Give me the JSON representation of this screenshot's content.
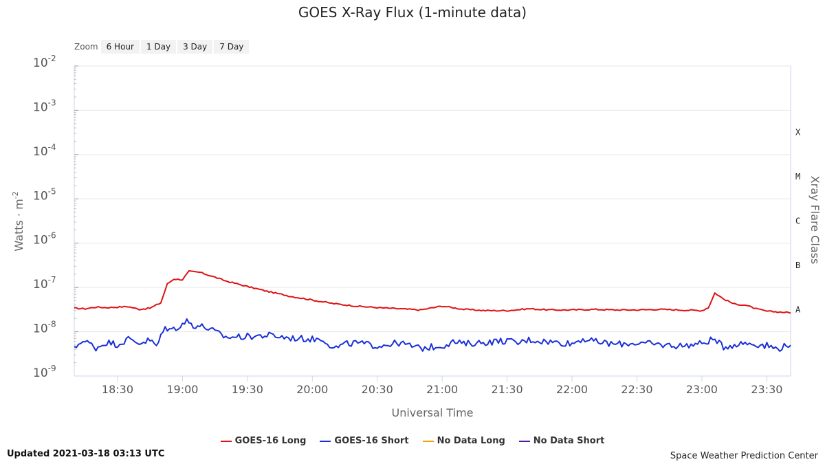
{
  "title": "GOES X-Ray Flux (1-minute data)",
  "zoom": {
    "label": "Zoom",
    "buttons": [
      "6 Hour",
      "1 Day",
      "3 Day",
      "7 Day"
    ]
  },
  "footer": {
    "updated": "Updated 2021-03-18 03:13 UTC",
    "credit": "Space Weather Prediction Center"
  },
  "colors": {
    "goes16_long": "#e01010",
    "goes16_short": "#1a2fd6",
    "no_data_long": "#f0a000",
    "no_data_short": "#5a1a9a",
    "grid": "#e6e6e6",
    "axis": "#ccd6eb"
  },
  "chart_data": {
    "type": "line",
    "title": "GOES X-Ray Flux (1-minute data)",
    "xlabel": "Universal Time",
    "ylabel": "Watts · m",
    "ylabel_superscript": "-2",
    "y2label": "Xray Flare Class",
    "yscale": "log",
    "ylim": [
      1e-09,
      0.01
    ],
    "xlim": [
      "18:10",
      "23:41"
    ],
    "grid": true,
    "legend_position": "bottom",
    "y_ticks": [
      {
        "base": "10",
        "exp": "-2"
      },
      {
        "base": "10",
        "exp": "-3"
      },
      {
        "base": "10",
        "exp": "-4"
      },
      {
        "base": "10",
        "exp": "-5"
      },
      {
        "base": "10",
        "exp": "-6"
      },
      {
        "base": "10",
        "exp": "-7"
      },
      {
        "base": "10",
        "exp": "-8"
      },
      {
        "base": "10",
        "exp": "-9"
      }
    ],
    "x_ticks": [
      "18:30",
      "19:00",
      "19:30",
      "20:00",
      "20:30",
      "21:00",
      "21:30",
      "22:00",
      "22:30",
      "23:00",
      "23:30"
    ],
    "flare_classes": [
      {
        "label": "X",
        "flux": 0.0001
      },
      {
        "label": "M",
        "flux": 1e-05
      },
      {
        "label": "C",
        "flux": 1e-06
      },
      {
        "label": "B",
        "flux": 1e-07
      },
      {
        "label": "A",
        "flux": 1e-08
      }
    ],
    "series": [
      {
        "name": "GOES-16 Long",
        "points": [
          [
            "18:10",
            3.4e-08
          ],
          [
            "18:15",
            3.3e-08
          ],
          [
            "18:20",
            3.6e-08
          ],
          [
            "18:25",
            3.5e-08
          ],
          [
            "18:30",
            3.6e-08
          ],
          [
            "18:35",
            3.7e-08
          ],
          [
            "18:40",
            3.2e-08
          ],
          [
            "18:45",
            3.4e-08
          ],
          [
            "18:50",
            4.5e-08
          ],
          [
            "18:53",
            1.2e-07
          ],
          [
            "18:56",
            1.55e-07
          ],
          [
            "19:00",
            1.5e-07
          ],
          [
            "19:03",
            2.3e-07
          ],
          [
            "19:08",
            2.2e-07
          ],
          [
            "19:15",
            1.7e-07
          ],
          [
            "19:20",
            1.4e-07
          ],
          [
            "19:30",
            1.05e-07
          ],
          [
            "19:40",
            8e-08
          ],
          [
            "19:50",
            6.3e-08
          ],
          [
            "20:00",
            5.2e-08
          ],
          [
            "20:10",
            4.3e-08
          ],
          [
            "20:20",
            3.8e-08
          ],
          [
            "20:30",
            3.5e-08
          ],
          [
            "20:40",
            3.3e-08
          ],
          [
            "20:50",
            3.1e-08
          ],
          [
            "21:00",
            3.8e-08
          ],
          [
            "21:10",
            3.2e-08
          ],
          [
            "21:20",
            3e-08
          ],
          [
            "21:30",
            3e-08
          ],
          [
            "21:40",
            3.3e-08
          ],
          [
            "21:50",
            3.1e-08
          ],
          [
            "22:00",
            3.1e-08
          ],
          [
            "22:10",
            3.2e-08
          ],
          [
            "22:20",
            3.1e-08
          ],
          [
            "22:30",
            3.1e-08
          ],
          [
            "22:40",
            3.2e-08
          ],
          [
            "22:50",
            3.1e-08
          ],
          [
            "23:00",
            3e-08
          ],
          [
            "23:03",
            3.5e-08
          ],
          [
            "23:06",
            7.5e-08
          ],
          [
            "23:10",
            5.5e-08
          ],
          [
            "23:15",
            4.2e-08
          ],
          [
            "23:20",
            4e-08
          ],
          [
            "23:25",
            3.3e-08
          ],
          [
            "23:30",
            2.9e-08
          ],
          [
            "23:35",
            2.8e-08
          ],
          [
            "23:41",
            2.7e-08
          ]
        ]
      },
      {
        "name": "GOES-16 Short",
        "points": [
          [
            "18:10",
            4e-09
          ],
          [
            "18:13",
            6.2e-09
          ],
          [
            "18:17",
            5.5e-09
          ],
          [
            "18:20",
            4.3e-09
          ],
          [
            "18:25",
            5.8e-09
          ],
          [
            "18:30",
            5.2e-09
          ],
          [
            "18:35",
            6.8e-09
          ],
          [
            "18:40",
            5.6e-09
          ],
          [
            "18:45",
            6.5e-09
          ],
          [
            "18:48",
            4.7e-09
          ],
          [
            "18:52",
            1.25e-08
          ],
          [
            "18:55",
            1.1e-08
          ],
          [
            "18:58",
            1.3e-08
          ],
          [
            "19:02",
            1.75e-08
          ],
          [
            "19:05",
            1.4e-08
          ],
          [
            "19:10",
            1.3e-08
          ],
          [
            "19:15",
            1e-08
          ],
          [
            "19:20",
            7.5e-09
          ],
          [
            "19:30",
            7.8e-09
          ],
          [
            "19:40",
            8.3e-09
          ],
          [
            "19:50",
            7.2e-09
          ],
          [
            "20:00",
            6.8e-09
          ],
          [
            "20:05",
            6.9e-09
          ],
          [
            "20:10",
            4.2e-09
          ],
          [
            "20:15",
            5.2e-09
          ],
          [
            "20:20",
            5.6e-09
          ],
          [
            "20:30",
            4.8e-09
          ],
          [
            "20:40",
            5.6e-09
          ],
          [
            "20:50",
            4.2e-09
          ],
          [
            "21:00",
            4.8e-09
          ],
          [
            "21:05",
            5.9e-09
          ],
          [
            "21:10",
            5.3e-09
          ],
          [
            "21:20",
            5.8e-09
          ],
          [
            "21:30",
            6.3e-09
          ],
          [
            "21:35",
            5.5e-09
          ],
          [
            "21:40",
            6.6e-09
          ],
          [
            "21:50",
            5.9e-09
          ],
          [
            "22:00",
            5.4e-09
          ],
          [
            "22:05",
            7e-09
          ],
          [
            "22:10",
            6e-09
          ],
          [
            "22:20",
            5.2e-09
          ],
          [
            "22:30",
            5.6e-09
          ],
          [
            "22:40",
            5.1e-09
          ],
          [
            "22:50",
            4.8e-09
          ],
          [
            "23:00",
            5.4e-09
          ],
          [
            "23:05",
            6.8e-09
          ],
          [
            "23:10",
            4.6e-09
          ],
          [
            "23:15",
            5.1e-09
          ],
          [
            "23:20",
            5.6e-09
          ],
          [
            "23:30",
            4.9e-09
          ],
          [
            "23:35",
            4.1e-09
          ],
          [
            "23:41",
            5.4e-09
          ]
        ]
      },
      {
        "name": "No Data Long",
        "points": []
      },
      {
        "name": "No Data Short",
        "points": []
      }
    ]
  }
}
